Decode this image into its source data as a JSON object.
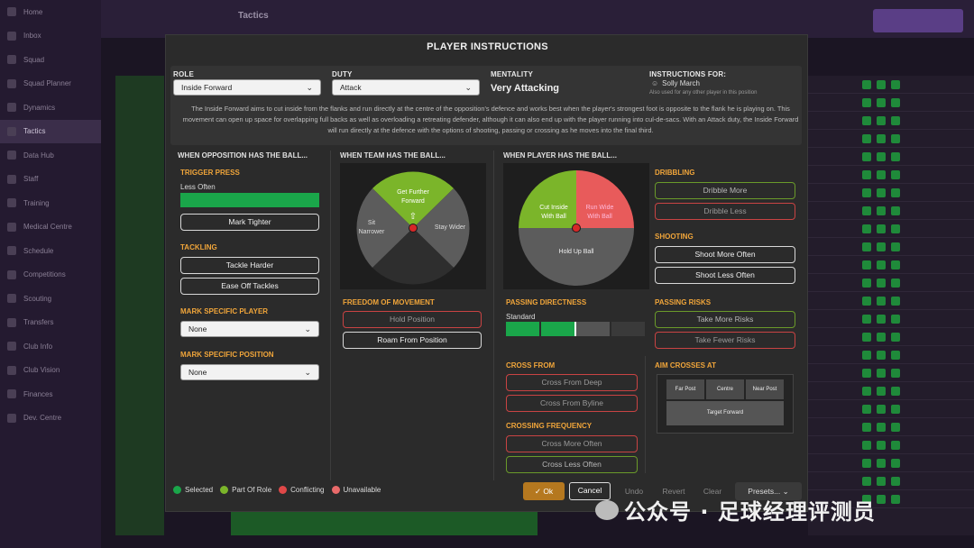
{
  "background": {
    "sidebar_items": [
      "Home",
      "Inbox",
      "Squad",
      "Squad Planner",
      "Dynamics",
      "Tactics",
      "Data Hub",
      "Staff",
      "Training",
      "Medical Centre",
      "Schedule",
      "Competitions",
      "Scouting",
      "Transfers",
      "Club Info",
      "Club Vision",
      "Finances",
      "Dev. Centre"
    ],
    "header_title": "Tactics"
  },
  "modal": {
    "title": "PLAYER INSTRUCTIONS",
    "role_label": "ROLE",
    "role_value": "Inside Forward",
    "duty_label": "DUTY",
    "duty_value": "Attack",
    "mentality_label": "MENTALITY",
    "mentality_value": "Very Attacking",
    "instructions_for_label": "INSTRUCTIONS FOR:",
    "player_name": "Solly March",
    "also_used": "Also used for any other player in this position",
    "description": "The Inside Forward aims to cut inside from the flanks and run directly at the centre of the opposition's defence and works best when the player's strongest foot is opposite to the flank he is playing on. This movement can open up space for overlapping full backs as well as overloading a retreating defender, although it can also end up with the player running into cul-de-sacs. With an Attack duty, the Inside Forward will run directly at the defence with the options of shooting, passing or crossing as he moves into the final third."
  },
  "col1": {
    "header": "WHEN OPPOSITION HAS THE BALL...",
    "trigger_press": "TRIGGER PRESS",
    "trigger_value": "Less Often",
    "trigger_level": 1.0,
    "mark_tighter": "Mark Tighter",
    "tackling": "TACKLING",
    "tackle_harder": "Tackle Harder",
    "ease_off": "Ease Off Tackles",
    "mark_player_label": "MARK SPECIFIC PLAYER",
    "mark_player_value": "None",
    "mark_position_label": "MARK SPECIFIC POSITION",
    "mark_position_value": "None"
  },
  "col2": {
    "header": "WHEN TEAM HAS THE BALL...",
    "get_further_forward_1": "Get Further",
    "get_further_forward_2": "Forward",
    "sit_narrower_1": "Sit",
    "sit_narrower_2": "Narrower",
    "stay_wider": "Stay Wider",
    "freedom_label": "FREEDOM OF MOVEMENT",
    "hold_position": "Hold Position",
    "roam": "Roam From Position"
  },
  "col3": {
    "header": "WHEN PLAYER HAS THE BALL...",
    "cut_inside_1": "Cut Inside",
    "cut_inside_2": "With Ball",
    "run_wide_1": "Run Wide",
    "run_wide_2": "With Ball",
    "hold_up": "Hold Up Ball",
    "passing_directness": "PASSING DIRECTNESS",
    "passing_value": "Standard",
    "cross_from": "CROSS FROM",
    "cross_deep": "Cross From Deep",
    "cross_byline": "Cross From Byline",
    "crossing_freq": "CROSSING FREQUENCY",
    "cross_more": "Cross More Often",
    "cross_less": "Cross Less Often"
  },
  "col4": {
    "dribbling": "DRIBBLING",
    "dribble_more": "Dribble More",
    "dribble_less": "Dribble Less",
    "shooting": "SHOOTING",
    "shoot_more": "Shoot More Often",
    "shoot_less": "Shoot Less Often",
    "passing_risks": "PASSING RISKS",
    "more_risks": "Take More Risks",
    "fewer_risks": "Take Fewer Risks",
    "aim_crosses": "AIM CROSSES AT",
    "far_post": "Far Post",
    "centre": "Centre",
    "near_post": "Near Post",
    "target_forward": "Target Forward"
  },
  "legend": {
    "selected": "Selected",
    "part_of_role": "Part Of Role",
    "conflicting": "Conflicting",
    "unavailable": "Unavailable"
  },
  "footer": {
    "ok": "Ok",
    "cancel": "Cancel",
    "undo": "Undo",
    "revert": "Revert",
    "clear": "Clear",
    "presets": "Presets..."
  },
  "watermark": "公众号 · 足球经理评测员",
  "colors": {
    "selected": "#1aa64a",
    "part_of_role": "#7bb52a",
    "conflicting": "#e04848",
    "unavailable": "#e86a6a",
    "section_orange": "#f0a53a"
  }
}
